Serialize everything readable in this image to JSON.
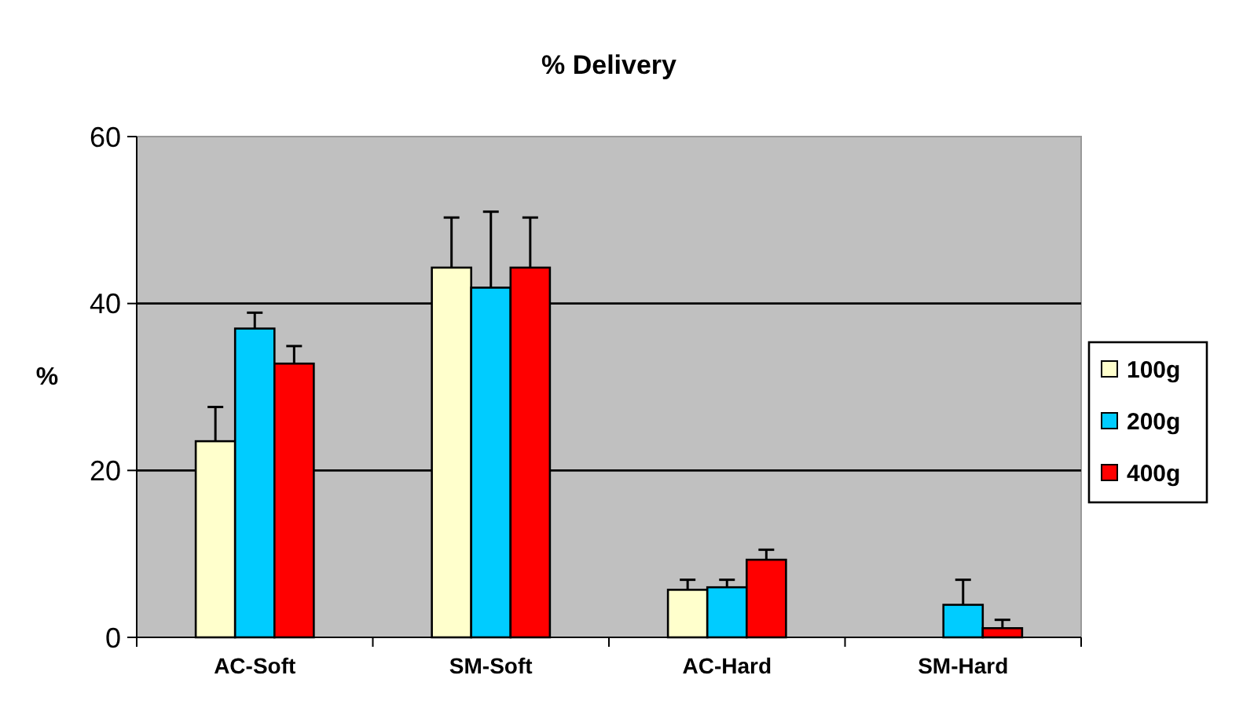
{
  "chart_data": {
    "type": "bar",
    "title": "% Delivery",
    "ylabel": "%",
    "categories": [
      "AC-Soft",
      "SM-Soft",
      "AC-Hard",
      "SM-Hard"
    ],
    "series": [
      {
        "name": "100g",
        "color": "#ffffcc",
        "values": [
          23.5,
          44.3,
          5.7,
          null
        ],
        "errors": [
          [
            23.5,
            27.6
          ],
          [
            44.3,
            50.3
          ],
          [
            5.7,
            6.9
          ],
          null
        ]
      },
      {
        "name": "200g",
        "color": "#00ccff",
        "values": [
          37.0,
          41.9,
          6.0,
          3.9
        ],
        "errors": [
          [
            37.0,
            38.9
          ],
          [
            41.9,
            51.0
          ],
          [
            6.0,
            6.9
          ],
          [
            3.9,
            6.9
          ]
        ]
      },
      {
        "name": "400g",
        "color": "#ff0000",
        "values": [
          32.8,
          44.3,
          9.3,
          1.1
        ],
        "errors": [
          [
            32.8,
            34.9
          ],
          [
            44.3,
            50.3
          ],
          [
            9.3,
            10.5
          ],
          [
            1.1,
            2.1
          ]
        ]
      }
    ],
    "ylim": [
      0,
      60
    ],
    "yticks": [
      0,
      20,
      40,
      60
    ],
    "grid": "y",
    "legend": "right"
  }
}
